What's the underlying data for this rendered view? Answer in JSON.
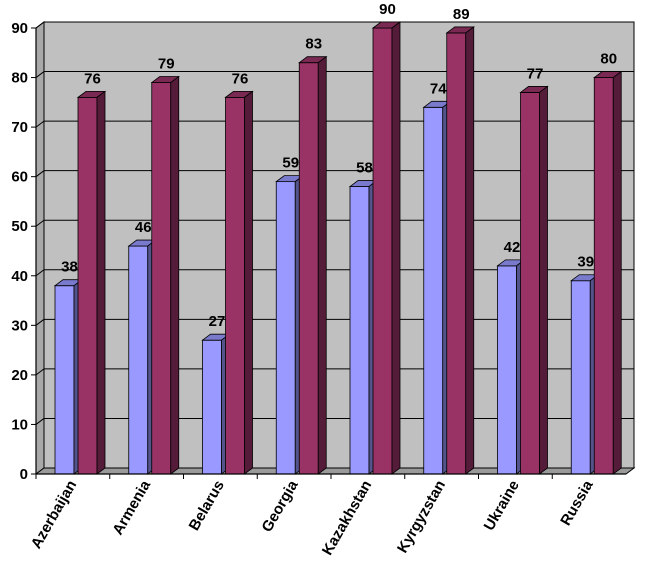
{
  "chart_data": {
    "type": "bar",
    "categories": [
      "Azerbaijan",
      "Armenia",
      "Belarus",
      "Georgia",
      "Kazakhstan",
      "Kyrgyzstan",
      "Ukraine",
      "Russia"
    ],
    "series": [
      {
        "values": [
          38,
          46,
          27,
          59,
          58,
          74,
          42,
          39
        ],
        "color": "#9999ff"
      },
      {
        "values": [
          76,
          79,
          76,
          83,
          90,
          89,
          77,
          80
        ],
        "color": "#993366"
      }
    ],
    "ylim": [
      0,
      90
    ],
    "yticks": [
      0,
      10,
      20,
      30,
      40,
      50,
      60,
      70,
      80,
      90
    ],
    "grid": true,
    "style": "3d-column",
    "plot_background": "#c0c0c0"
  }
}
